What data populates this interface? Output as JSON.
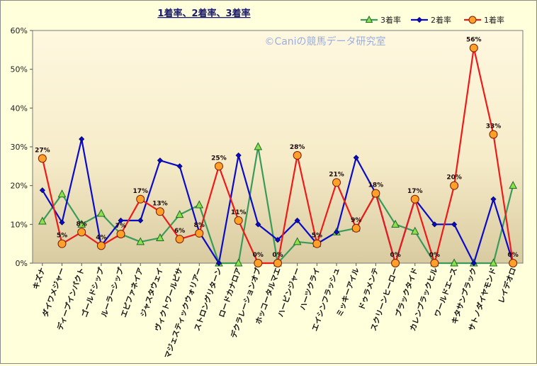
{
  "chart_data": {
    "type": "line",
    "title": "1着率、2着率、3着率",
    "watermark": "©Caniの競馬データ研究室",
    "ylim": [
      0,
      60
    ],
    "yticks": [
      "0%",
      "10%",
      "20%",
      "30%",
      "40%",
      "50%",
      "60%"
    ],
    "grid": false,
    "legend_position": "top-right",
    "categories": [
      "キズナ",
      "ダイワメジャー",
      "ディープインパクト",
      "ゴールドシップ",
      "ルーラーシップ",
      "エピファネイア",
      "ジャスタウェイ",
      "ヴィクトワールピサ",
      "マジェスティックウォリアー",
      "ストロングリターン",
      "ロードカナロア",
      "デクラレーションオブ",
      "ホッコータルマエ",
      "ハービンジャー",
      "ハーツクライ",
      "エイシンフラッシュ",
      "ミッキーアイル",
      "ドゥラメンテ",
      "スクリーンヒーロー",
      "ブラックタイド",
      "カレンブラックヒル",
      "ワールドエース",
      "キタサンブラック",
      "サトノダイヤモンド",
      "レイデオロ"
    ],
    "series": [
      {
        "name": "3着率",
        "color": "#3a9a5a",
        "marker": "triangle",
        "values": [
          10.8,
          17.8,
          10,
          12.8,
          7.5,
          5.5,
          6.5,
          12.5,
          15,
          0,
          0,
          30,
          0,
          5.5,
          5,
          8,
          9,
          18,
          10,
          8.2,
          0,
          0,
          0,
          0,
          20
        ]
      },
      {
        "name": "2着率",
        "color": "#0a0ac8",
        "marker": "diamond",
        "values": [
          18.8,
          10.5,
          32,
          4.5,
          11,
          11,
          26.5,
          25,
          8,
          0,
          27.8,
          10,
          6,
          11,
          5,
          8,
          27.2,
          18,
          0,
          16.5,
          10,
          10,
          0,
          16.5,
          0
        ]
      },
      {
        "name": "1着率",
        "color": "#ee1a1a",
        "marker": "circle",
        "values": [
          27,
          5,
          8,
          4.5,
          7.5,
          16.5,
          13.3,
          6.2,
          7.7,
          25,
          11,
          0,
          0,
          27.8,
          5,
          20.8,
          9,
          18,
          0,
          16.5,
          0,
          20,
          55.5,
          33.2,
          0
        ],
        "labels": [
          "27%",
          "5%",
          "8%",
          "4%",
          "7%",
          "17%",
          "13%",
          "6%",
          "8%",
          "25%",
          "11%",
          "0%",
          "0%",
          "28%",
          "5%",
          "21%",
          "9%",
          "18%",
          "0%",
          "17%",
          "0%",
          "20%",
          "56%",
          "33%",
          "0%"
        ]
      }
    ]
  }
}
